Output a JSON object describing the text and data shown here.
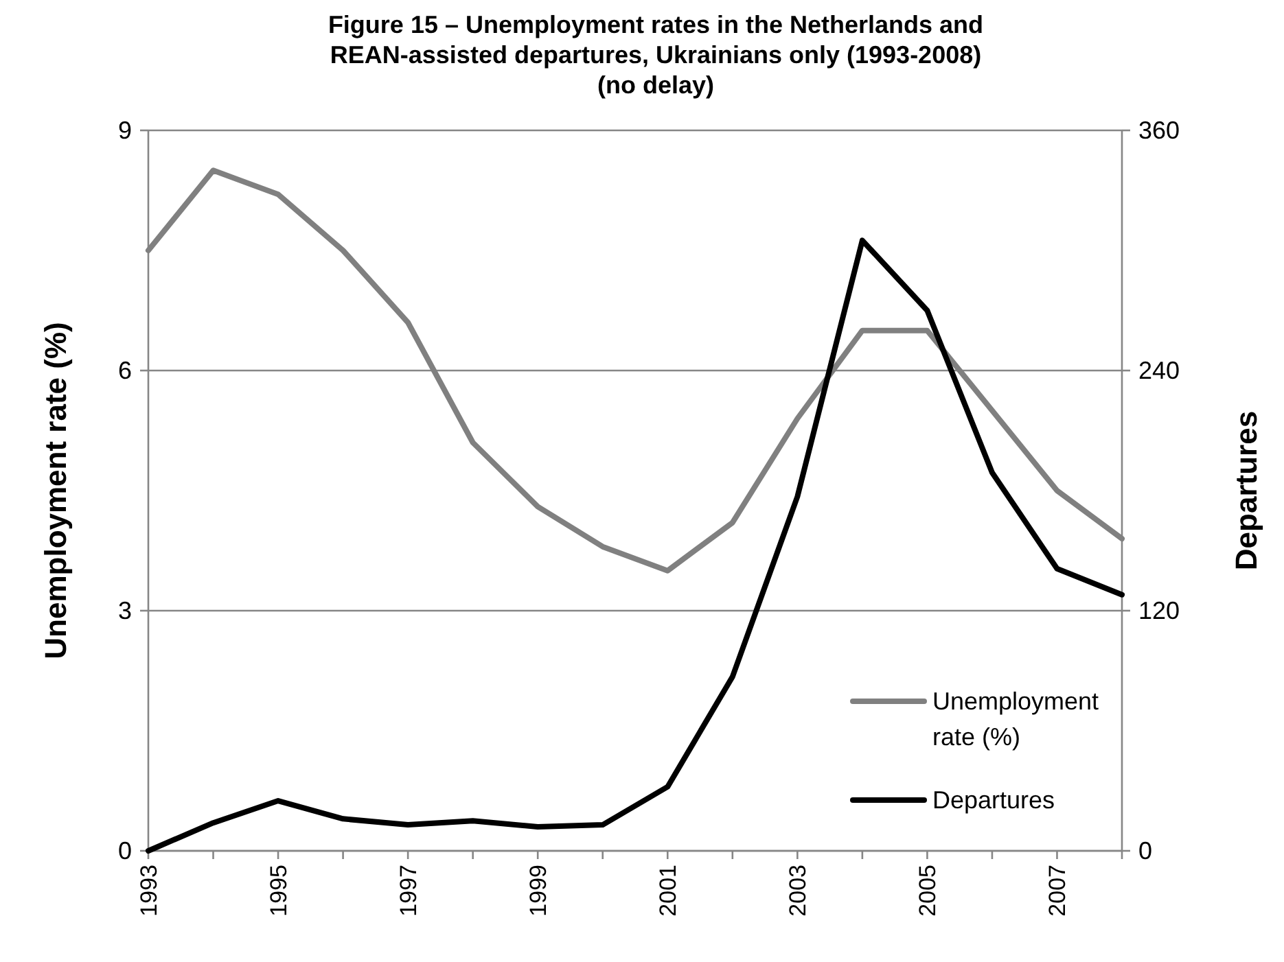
{
  "chart_data": {
    "type": "line",
    "title": "Figure 15 – Unemployment rates in the Netherlands and REAN-assisted departures, Ukrainians only (1993-2008) (no delay)",
    "ylabel": "Unemployment rate (%)",
    "y2label": "Departures",
    "x": [
      1993,
      1994,
      1995,
      1996,
      1997,
      1998,
      1999,
      2000,
      2001,
      2002,
      2003,
      2004,
      2005,
      2006,
      2007,
      2008
    ],
    "series": [
      {
        "name": "Unemployment rate (%)",
        "color": "#808080",
        "values": [
          7.5,
          8.5,
          8.2,
          7.5,
          6.6,
          5.1,
          4.3,
          3.8,
          3.5,
          4.1,
          5.4,
          6.5,
          6.5,
          5.5,
          4.5,
          3.9
        ]
      },
      {
        "name": "Departures",
        "color": "#000000",
        "axis": "y2",
        "values": [
          0,
          14,
          25,
          16,
          13,
          15,
          12,
          13,
          32,
          87,
          177,
          305,
          270,
          189,
          141,
          128
        ]
      }
    ],
    "xlim": [
      1993,
      2008
    ],
    "xticks": [
      1993,
      {
        "value": 1994,
        "label": null
      },
      1995,
      {
        "value": 1996,
        "label": null
      },
      1997,
      {
        "value": 1998,
        "label": null
      },
      1999,
      {
        "value": 2000,
        "label": null
      },
      2001,
      {
        "value": 2002,
        "label": null
      },
      2003,
      {
        "value": 2004,
        "label": null
      },
      2005,
      {
        "value": 2006,
        "label": null
      },
      2007,
      {
        "value": 2008,
        "label": null
      }
    ],
    "ylim": [
      0,
      9
    ],
    "yticks": [
      0,
      3,
      6,
      9
    ],
    "y2lim": [
      0,
      360
    ],
    "y2ticks": [
      0,
      120,
      240,
      360
    ],
    "grid": "y",
    "legend": "bottom right",
    "marker": "none",
    "line_style": "solid"
  }
}
